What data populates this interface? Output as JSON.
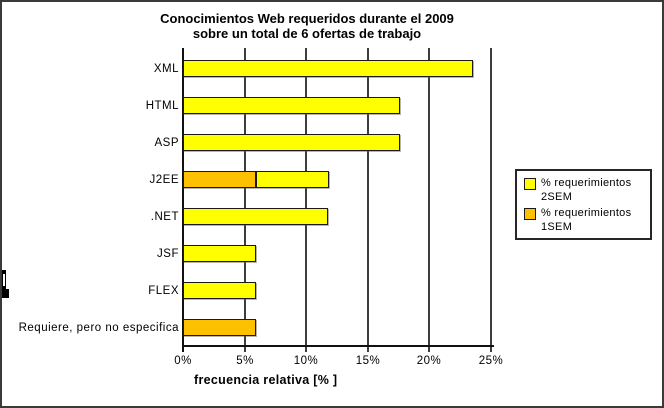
{
  "title": {
    "line1": "Conocimientos Web requeridos durante el 2009",
    "line2": "sobre un total de 6 ofertas de trabajo"
  },
  "legend": {
    "items": [
      {
        "line1": "% requerimientos",
        "line2": "2SEM",
        "color": "#FFFF00"
      },
      {
        "line1": "% requerimientos",
        "line2": "1SEM",
        "color": "#FDC101"
      }
    ]
  },
  "colors": {
    "sem2_yellow": "#FFFF00",
    "sem1_orange": "#FDC101",
    "gridline": "#3d3d3d",
    "bar_border": "#1a1a1a"
  },
  "chart_data": {
    "type": "bar",
    "orientation": "horizontal",
    "stacked": true,
    "title": "Conocimientos Web requeridos durante el 2009 sobre un total de 6 ofertas de trabajo",
    "categories": [
      "XML",
      "HTML",
      "ASP",
      "J2EE",
      ".NET",
      "JSF",
      "FLEX",
      "Requiere, pero no especifica"
    ],
    "series": [
      {
        "name": "% requerimientos 1SEM",
        "color": "#FDC101",
        "values": [
          0,
          0,
          0,
          5.9,
          0,
          0,
          0,
          5.9
        ]
      },
      {
        "name": "% requerimientos 2SEM",
        "color": "#FFFF00",
        "values": [
          23.5,
          17.6,
          17.6,
          5.9,
          11.8,
          5.9,
          5.9,
          0
        ]
      }
    ],
    "xlabel": "frecuencia relativa [% ]",
    "ylabel": "",
    "xlim": [
      0,
      25
    ],
    "xticks": [
      "0%",
      "5%",
      "10%",
      "15%",
      "20%",
      "25%"
    ],
    "grid": true,
    "legend_position": "right"
  }
}
